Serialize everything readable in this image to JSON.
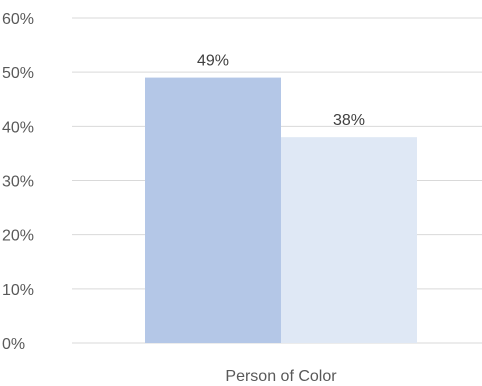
{
  "chart_data": {
    "type": "bar",
    "categories": [
      "Person of Color"
    ],
    "series": [
      {
        "values": [
          49
        ],
        "color": "#b4c7e7"
      },
      {
        "values": [
          38
        ],
        "color": "#dfe8f5"
      }
    ],
    "data_labels": [
      "49%",
      "38%"
    ],
    "y_ticks": [
      "0%",
      "10%",
      "20%",
      "30%",
      "40%",
      "50%",
      "60%"
    ],
    "ylim": [
      0,
      60
    ],
    "y_unit": "%",
    "grid": true,
    "legend": "none",
    "title": "",
    "xlabel": "",
    "ylabel": ""
  }
}
